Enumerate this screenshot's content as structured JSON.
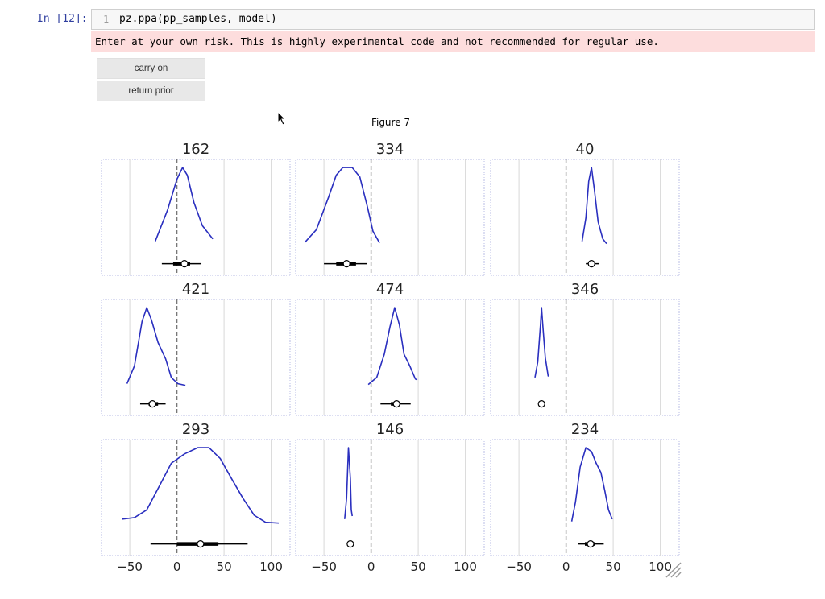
{
  "notebook": {
    "prompt": "In [12]:",
    "line_number": "1",
    "code": "pz.ppa(pp_samples, model)",
    "warning": "Enter at your own risk. This is highly experimental code and not recommended for regular use."
  },
  "buttons": {
    "carry_on": "carry on",
    "return_prior": "return prior"
  },
  "figure": {
    "title": "Figure 7"
  },
  "chart_data": {
    "type": "line",
    "subtype": "kde-grid",
    "xlim": [
      -80,
      120
    ],
    "xticks": [
      -50,
      0,
      50,
      100
    ],
    "xtick_labels": [
      "−50",
      "0",
      "50",
      "100"
    ],
    "reference_line_x": 0,
    "grid": true,
    "line_color": "#2a2fbf",
    "panels": [
      {
        "title": "162",
        "kde": [
          [
            -23,
            0.05
          ],
          [
            -10,
            0.45
          ],
          [
            0,
            0.85
          ],
          [
            6,
            1.0
          ],
          [
            11,
            0.9
          ],
          [
            18,
            0.55
          ],
          [
            27,
            0.25
          ],
          [
            38,
            0.08
          ]
        ],
        "hdi": [
          -16,
          26
        ],
        "iqr": [
          -4,
          14
        ],
        "point": 8
      },
      {
        "title": "334",
        "kde": [
          [
            -70,
            0.04
          ],
          [
            -58,
            0.2
          ],
          [
            -45,
            0.62
          ],
          [
            -37,
            0.9
          ],
          [
            -30,
            1.0
          ],
          [
            -20,
            1.0
          ],
          [
            -12,
            0.88
          ],
          [
            -4,
            0.5
          ],
          [
            2,
            0.18
          ],
          [
            9,
            0.03
          ]
        ],
        "hdi": [
          -50,
          -4
        ],
        "iqr": [
          -37,
          -16
        ],
        "point": -26
      },
      {
        "title": "40",
        "kde": [
          [
            17,
            0.05
          ],
          [
            21,
            0.35
          ],
          [
            24,
            0.82
          ],
          [
            27,
            1.0
          ],
          [
            30,
            0.72
          ],
          [
            34,
            0.3
          ],
          [
            39,
            0.08
          ],
          [
            43,
            0.02
          ]
        ],
        "hdi": [
          21,
          35
        ],
        "iqr": [
          24,
          30
        ],
        "point": 27
      },
      {
        "title": "421",
        "kde": [
          [
            -53,
            0.02
          ],
          [
            -45,
            0.25
          ],
          [
            -37,
            0.82
          ],
          [
            -32,
            1.0
          ],
          [
            -27,
            0.84
          ],
          [
            -20,
            0.55
          ],
          [
            -12,
            0.34
          ],
          [
            -6,
            0.1
          ],
          [
            1,
            0.02
          ],
          [
            9,
            0.0
          ]
        ],
        "hdi": [
          -39,
          -12
        ],
        "iqr": [
          -30,
          -20
        ],
        "point": -26
      },
      {
        "title": "474",
        "kde": [
          [
            -3,
            0.01
          ],
          [
            6,
            0.1
          ],
          [
            14,
            0.4
          ],
          [
            20,
            0.75
          ],
          [
            25,
            1.0
          ],
          [
            30,
            0.78
          ],
          [
            35,
            0.4
          ],
          [
            41,
            0.25
          ],
          [
            47,
            0.08
          ],
          [
            49,
            0.07
          ]
        ],
        "hdi": [
          10,
          42
        ],
        "iqr": [
          21,
          31
        ],
        "point": 27
      },
      {
        "title": "346",
        "kde": [
          [
            -33,
            0.1
          ],
          [
            -30,
            0.3
          ],
          [
            -27,
            0.8
          ],
          [
            -26,
            1.0
          ],
          [
            -25,
            0.82
          ],
          [
            -22,
            0.35
          ],
          [
            -19,
            0.12
          ],
          [
            -18,
            0.12
          ]
        ],
        "hdi": [],
        "iqr": [],
        "point": -26
      },
      {
        "title": "293",
        "kde": [
          [
            -58,
            0.08
          ],
          [
            -45,
            0.1
          ],
          [
            -32,
            0.2
          ],
          [
            -18,
            0.52
          ],
          [
            -6,
            0.8
          ],
          [
            8,
            0.92
          ],
          [
            22,
            1.0
          ],
          [
            34,
            1.0
          ],
          [
            46,
            0.86
          ],
          [
            58,
            0.6
          ],
          [
            70,
            0.35
          ],
          [
            82,
            0.13
          ],
          [
            94,
            0.04
          ],
          [
            108,
            0.03
          ]
        ],
        "hdi": [
          -28,
          75
        ],
        "iqr": [
          0,
          44
        ],
        "point": 25
      },
      {
        "title": "146",
        "kde": [
          [
            -28,
            0.08
          ],
          [
            -26,
            0.35
          ],
          [
            -24,
            1.0
          ],
          [
            -22,
            0.6
          ],
          [
            -21,
            0.2
          ],
          [
            -20,
            0.12
          ]
        ],
        "hdi": [],
        "iqr": [],
        "point": -22
      },
      {
        "title": "234",
        "kde": [
          [
            6,
            0.05
          ],
          [
            10,
            0.3
          ],
          [
            15,
            0.75
          ],
          [
            21,
            1.0
          ],
          [
            27,
            0.95
          ],
          [
            32,
            0.8
          ],
          [
            37,
            0.68
          ],
          [
            41,
            0.45
          ],
          [
            45,
            0.2
          ],
          [
            49,
            0.08
          ]
        ],
        "hdi": [
          13,
          40
        ],
        "iqr": [
          20,
          31
        ],
        "point": 26
      }
    ]
  }
}
